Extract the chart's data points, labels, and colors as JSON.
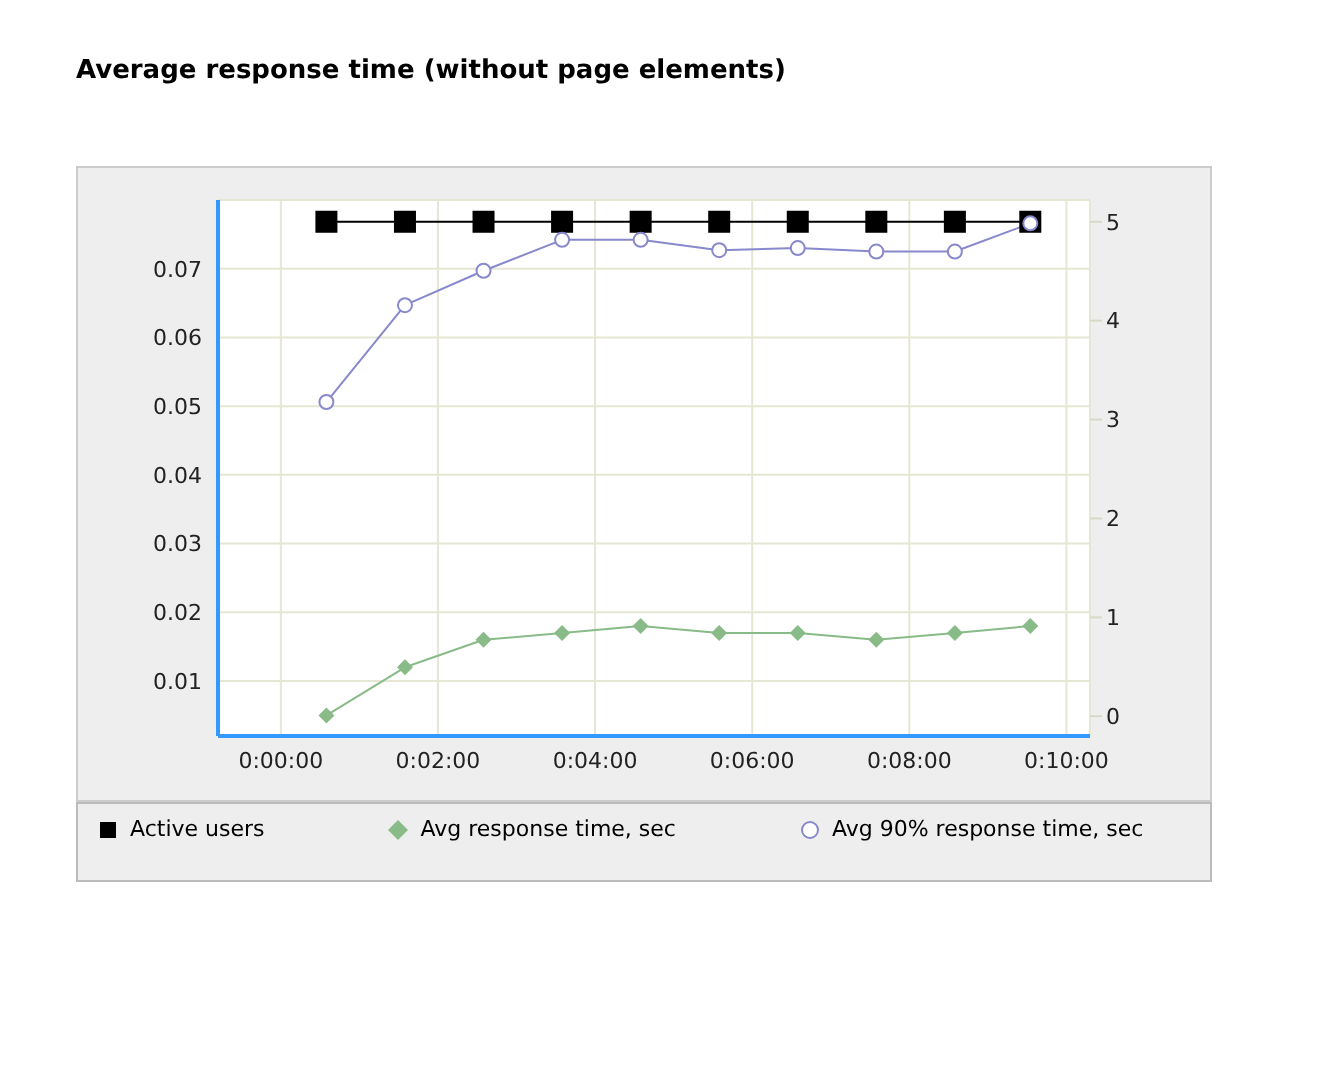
{
  "chart_data": {
    "type": "line",
    "title": "Average response time (without page elements)",
    "x": [
      0.58,
      1.58,
      2.58,
      3.58,
      4.58,
      5.58,
      6.58,
      7.58,
      8.58,
      9.54
    ],
    "series": [
      {
        "name": "Active users",
        "color": "#000000",
        "marker": "square",
        "axis": "y2",
        "values": [
          5,
          5,
          5,
          5,
          5,
          5,
          5,
          5,
          5,
          5
        ]
      },
      {
        "name": "Avg response time, sec",
        "color": "#88bb88",
        "marker": "diamond",
        "values": [
          0.005,
          0.012,
          0.016,
          0.017,
          0.018,
          0.017,
          0.017,
          0.016,
          0.017,
          0.018
        ]
      },
      {
        "name": "Avg 90% response time, sec",
        "color": "#8888cc",
        "marker": "circle",
        "values": [
          0.0506,
          0.0647,
          0.0697,
          0.0742,
          0.0742,
          0.0727,
          0.073,
          0.0725,
          0.0725,
          0.0766
        ]
      }
    ],
    "xlim": [
      -0.8,
      10.3
    ],
    "xticks": [
      {
        "value": 0,
        "label": "0:00:00"
      },
      {
        "value": 2,
        "label": "0:02:00"
      },
      {
        "value": 4,
        "label": "0:04:00"
      },
      {
        "value": 6,
        "label": "0:06:00"
      },
      {
        "value": 8,
        "label": "0:08:00"
      },
      {
        "value": 10,
        "label": "0:10:00"
      }
    ],
    "ylim": [
      0.002,
      0.08
    ],
    "yticks": [
      0.01,
      0.02,
      0.03,
      0.04,
      0.05,
      0.06,
      0.07
    ],
    "y2lim": [
      -0.2,
      5.22
    ],
    "y2ticks": [
      0,
      1,
      2,
      3,
      4,
      5
    ],
    "grid": true,
    "legend": "bottom"
  }
}
